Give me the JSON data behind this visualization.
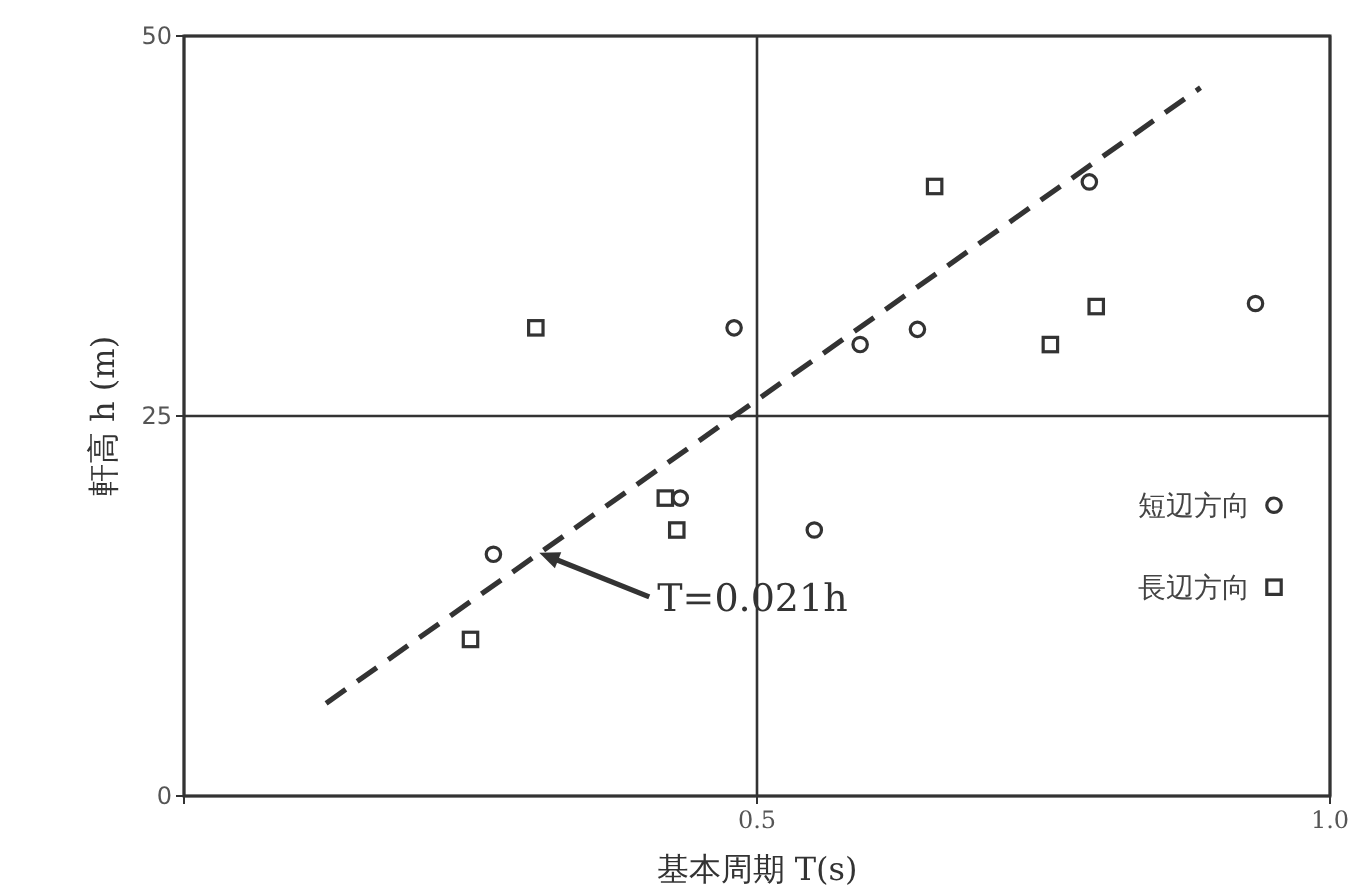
{
  "chart_data": {
    "type": "scatter",
    "xlabel": "基本周期 T(s)",
    "ylabel": "軒高 h (m)",
    "xlim": [
      0,
      1
    ],
    "ylim": [
      0,
      50
    ],
    "xticks": [
      {
        "value": 0,
        "label": null
      },
      0.5,
      {
        "value": 1,
        "label": "1.0"
      }
    ],
    "yticks": [
      0,
      25,
      50
    ],
    "grid": true,
    "legend": "right",
    "series": [
      {
        "name": "短辺方向",
        "type": "scatter",
        "marker": "circle",
        "color": "#333333",
        "x": [
          0.27,
          0.48,
          0.55,
          0.433,
          0.59,
          0.64,
          0.79,
          0.935
        ],
        "values": [
          15.9,
          30.8,
          17.5,
          19.6,
          29.7,
          30.7,
          40.4,
          32.4
        ]
      },
      {
        "name": "長辺方向",
        "type": "scatter",
        "marker": "square",
        "color": "#333333",
        "x": [
          0.25,
          0.307,
          0.42,
          0.43,
          0.655,
          0.756,
          0.796
        ],
        "values": [
          10.3,
          30.8,
          19.6,
          17.5,
          40.1,
          29.7,
          32.2
        ]
      },
      {
        "type": "line",
        "marker": "none",
        "line_style": "dashed",
        "color": "#333333",
        "x": [
          0.124,
          0.887
        ],
        "values": [
          6.1,
          46.6
        ]
      }
    ],
    "annotations": [
      {
        "text": "T=0.021h",
        "x": 0.31,
        "y": 16.0
      }
    ]
  }
}
